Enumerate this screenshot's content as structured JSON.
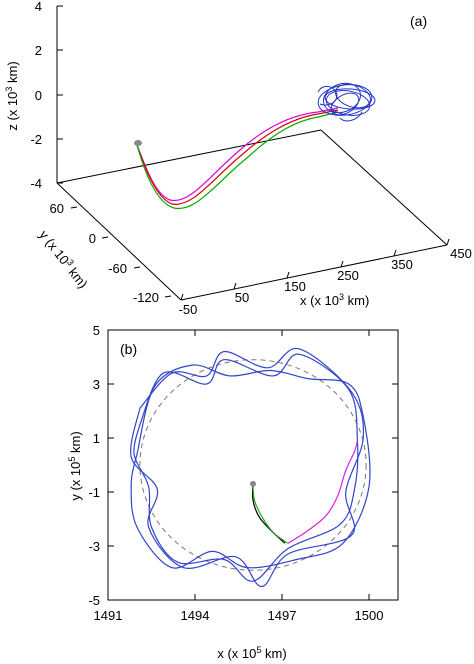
{
  "chart_data": [
    {
      "panel": "(a)",
      "type": "line",
      "subtype": "3d-trajectory",
      "xlabel": {
        "pre": "x (x 10",
        "sup": "3",
        "post": " km)"
      },
      "ylabel": {
        "pre": "y (x 10",
        "sup": "3",
        "post": " km)"
      },
      "zlabel": {
        "pre": "z (x 10",
        "sup": "3",
        "post": " km)"
      },
      "x_ticks": [
        "-50",
        "50",
        "150",
        "250",
        "350",
        "450"
      ],
      "y_ticks": [
        "60",
        "0",
        "-60",
        "-120"
      ],
      "z_ticks": [
        "4",
        "2",
        "0",
        "-2",
        "-4"
      ],
      "xlim": [
        -50,
        450
      ],
      "ylim": [
        -120,
        60
      ],
      "zlim": [
        -4,
        4
      ],
      "grid": false,
      "legend": "none",
      "series": [
        {
          "color": "#2222cc",
          "description_points": [
            [
              360,
              20,
              0.2
            ],
            [
              370,
              30,
              -0.2
            ],
            [
              380,
              10,
              0.4
            ],
            [
              350,
              25,
              -0.4
            ],
            [
              375,
              15,
              0.0
            ]
          ]
        },
        {
          "color": "#dd00dd",
          "points": [
            [
              -40,
              60,
              -2.2
            ],
            [
              40,
              0,
              -4.4
            ],
            [
              150,
              0,
              -3.0
            ],
            [
              300,
              30,
              -0.5
            ],
            [
              355,
              20,
              -0.3
            ]
          ]
        },
        {
          "color": "#dd0000",
          "points": [
            [
              -40,
              60,
              -2.2
            ],
            [
              45,
              0,
              -4.5
            ],
            [
              155,
              0,
              -3.1
            ],
            [
              300,
              30,
              -0.6
            ],
            [
              355,
              20,
              -0.3
            ]
          ]
        },
        {
          "color": "#00aa00",
          "points": [
            [
              -40,
              60,
              -2.2
            ],
            [
              50,
              0,
              -4.6
            ],
            [
              160,
              0,
              -3.2
            ],
            [
              305,
              30,
              -0.7
            ],
            [
              355,
              20,
              -0.3
            ]
          ]
        }
      ],
      "start_marker": {
        "color": "#888888",
        "point": [
          -40,
          60,
          -2.2
        ]
      }
    },
    {
      "panel": "(b)",
      "type": "line",
      "xlabel": {
        "pre": "x (x 10",
        "sup": "5",
        "post": " km)"
      },
      "ylabel": {
        "pre": "y (x 10",
        "sup": "5",
        "post": " km)"
      },
      "x_ticks": [
        "1491",
        "1494",
        "1497",
        "1500"
      ],
      "y_ticks": [
        "5",
        "3",
        "1",
        "-1",
        "-3",
        "-5"
      ],
      "xlim": [
        1491,
        1501
      ],
      "ylim": [
        -5,
        5
      ],
      "grid": false,
      "legend": "none",
      "reference_circle": {
        "color": "#777777",
        "dash": true,
        "center": [
          1496,
          0
        ],
        "radius": 3.9
      },
      "series": [
        {
          "color": "#3344cc",
          "points": [
            [
              1492.1,
              2.1
            ],
            [
              1493.2,
              3.4
            ],
            [
              1494.4,
              3.3
            ],
            [
              1495.0,
              4.2
            ],
            [
              1496.5,
              3.6
            ],
            [
              1497.6,
              4.3
            ],
            [
              1499.4,
              2.7
            ],
            [
              1499.8,
              1.0
            ],
            [
              1499.2,
              -1.0
            ],
            [
              1499.4,
              -2.6
            ],
            [
              1497.2,
              -3.3
            ],
            [
              1496.3,
              -4.5
            ],
            [
              1495.4,
              -3.4
            ],
            [
              1493.6,
              -3.8
            ],
            [
              1492.4,
              -2.3
            ],
            [
              1492.7,
              -0.9
            ],
            [
              1491.8,
              0.3
            ],
            [
              1492.1,
              2.1
            ]
          ]
        },
        {
          "color": "#3344cc",
          "points": [
            [
              1492.1,
              1.5
            ],
            [
              1492.9,
              3.4
            ],
            [
              1494.4,
              3.0
            ],
            [
              1495.0,
              3.9
            ],
            [
              1496.7,
              3.3
            ],
            [
              1497.6,
              4.1
            ],
            [
              1499.3,
              2.8
            ],
            [
              1499.6,
              0.9
            ],
            [
              1499.5,
              -0.9
            ],
            [
              1499.0,
              -2.2
            ],
            [
              1497.2,
              -3.1
            ],
            [
              1496.0,
              -4.3
            ],
            [
              1495.0,
              -3.5
            ],
            [
              1493.4,
              -3.6
            ],
            [
              1492.5,
              -2.3
            ],
            [
              1492.4,
              -0.8
            ],
            [
              1491.9,
              0.4
            ],
            [
              1492.1,
              1.5
            ]
          ]
        },
        {
          "color": "#3344cc",
          "points": [
            [
              1492.0,
              0.4
            ],
            [
              1492.6,
              2.9
            ],
            [
              1493.9,
              3.7
            ],
            [
              1495.2,
              3.3
            ],
            [
              1496.6,
              3.5
            ],
            [
              1497.9,
              3.2
            ],
            [
              1499.3,
              3.0
            ],
            [
              1499.8,
              1.8
            ],
            [
              1500.0,
              -0.8
            ],
            [
              1499.1,
              -2.9
            ],
            [
              1497.5,
              -3.5
            ],
            [
              1495.8,
              -3.8
            ],
            [
              1494.6,
              -3.2
            ],
            [
              1493.2,
              -3.8
            ],
            [
              1492.0,
              -2.3
            ],
            [
              1491.8,
              -0.7
            ],
            [
              1492.0,
              0.4
            ]
          ]
        },
        {
          "color": "#dd22dd",
          "points": [
            [
              1497.2,
              -2.9
            ],
            [
              1497.8,
              -2.5
            ],
            [
              1498.5,
              -1.9
            ],
            [
              1498.9,
              -1.2
            ],
            [
              1499.2,
              -0.2
            ],
            [
              1499.5,
              0.5
            ],
            [
              1499.6,
              0.9
            ]
          ]
        },
        {
          "color": "#000000",
          "points": [
            [
              1496.0,
              -0.7
            ],
            [
              1496.0,
              -1.3
            ],
            [
              1496.2,
              -1.9
            ],
            [
              1496.6,
              -2.4
            ],
            [
              1497.1,
              -2.9
            ]
          ]
        },
        {
          "color": "#22aa22",
          "points": [
            [
              1496.0,
              -0.7
            ],
            [
              1496.05,
              -1.3
            ],
            [
              1496.3,
              -1.9
            ],
            [
              1496.7,
              -2.5
            ],
            [
              1497.2,
              -2.9
            ]
          ]
        }
      ],
      "start_marker": {
        "color": "#888888",
        "point": [
          1496.0,
          -0.7
        ]
      }
    }
  ]
}
